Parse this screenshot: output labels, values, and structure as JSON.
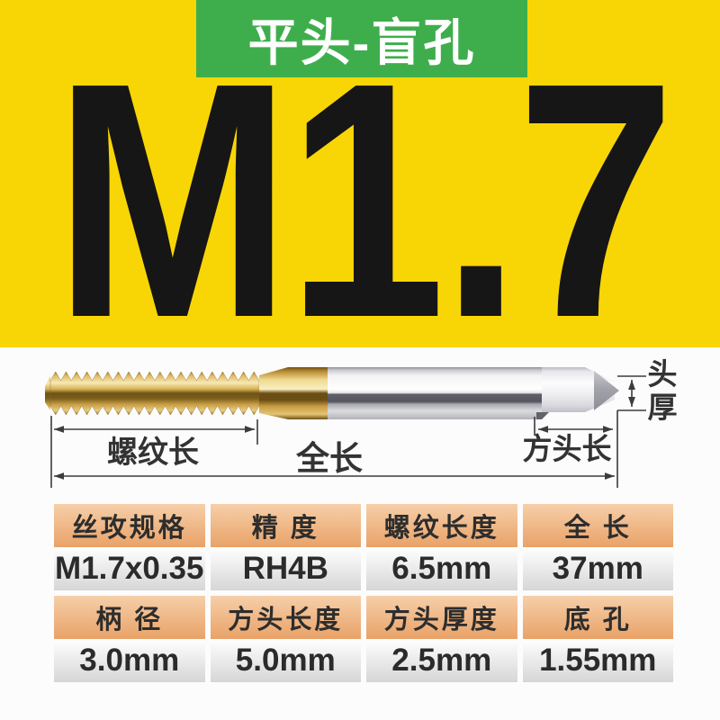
{
  "badge": {
    "label": "平头-盲孔"
  },
  "headline": "M1.7",
  "diagram": {
    "thread_length_label": "螺纹长",
    "total_length_label": "全长",
    "square_head_length_label": "方头长",
    "head_thickness_label": "头厚"
  },
  "spec_table": {
    "groups": [
      [
        {
          "header": "丝攻规格",
          "value": "M1.7x0.35"
        },
        {
          "header": "精 度",
          "value": "RH4B"
        },
        {
          "header": "螺纹长度",
          "value": "6.5mm"
        },
        {
          "header": "全 长",
          "value": "37mm"
        }
      ],
      [
        {
          "header": "柄 径",
          "value": "3.0mm"
        },
        {
          "header": "方头长度",
          "value": "5.0mm"
        },
        {
          "header": "方头厚度",
          "value": "2.5mm"
        },
        {
          "header": "底 孔",
          "value": "1.55mm"
        }
      ]
    ]
  },
  "colors": {
    "background_yellow": "#F8D606",
    "badge_green": "#3EAE4C",
    "headline_black": "#161616",
    "table_header_top": "#F6CFA9",
    "table_header_bottom": "#E9A268",
    "table_value_top": "#FFFFFF",
    "table_value_bottom": "#D6D6D6",
    "dimension_line": "#3C3C3C",
    "label_text": "#333333"
  }
}
